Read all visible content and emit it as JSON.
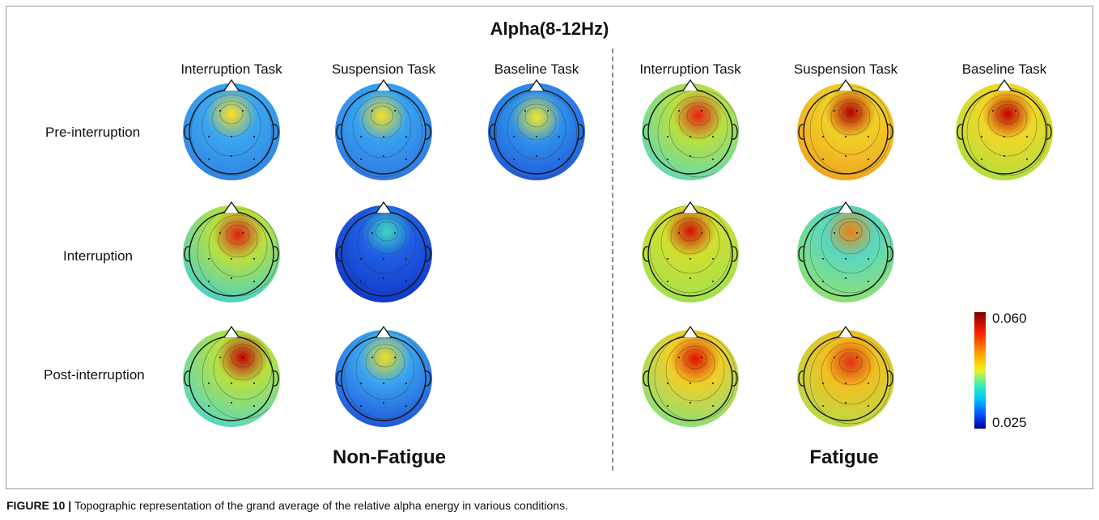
{
  "figure": {
    "band_title": "Alpha(8-12Hz)",
    "columns": [
      "Interruption Task",
      "Suspension Task",
      "Baseline Task",
      "Interruption Task",
      "Suspension Task",
      "Baseline Task"
    ],
    "rows": [
      "Pre-interruption",
      "Interruption",
      "Post-interruption"
    ],
    "groups": {
      "left": "Non-Fatigue",
      "right": "Fatigue"
    },
    "colorbar": {
      "max_label": "0.060",
      "min_label": "0.025",
      "min": 0.025,
      "max": 0.06
    },
    "caption": {
      "label": "FIGURE 10 |",
      "text": "Topographic representation of the grand average of the relative alpha energy in various conditions."
    }
  }
}
